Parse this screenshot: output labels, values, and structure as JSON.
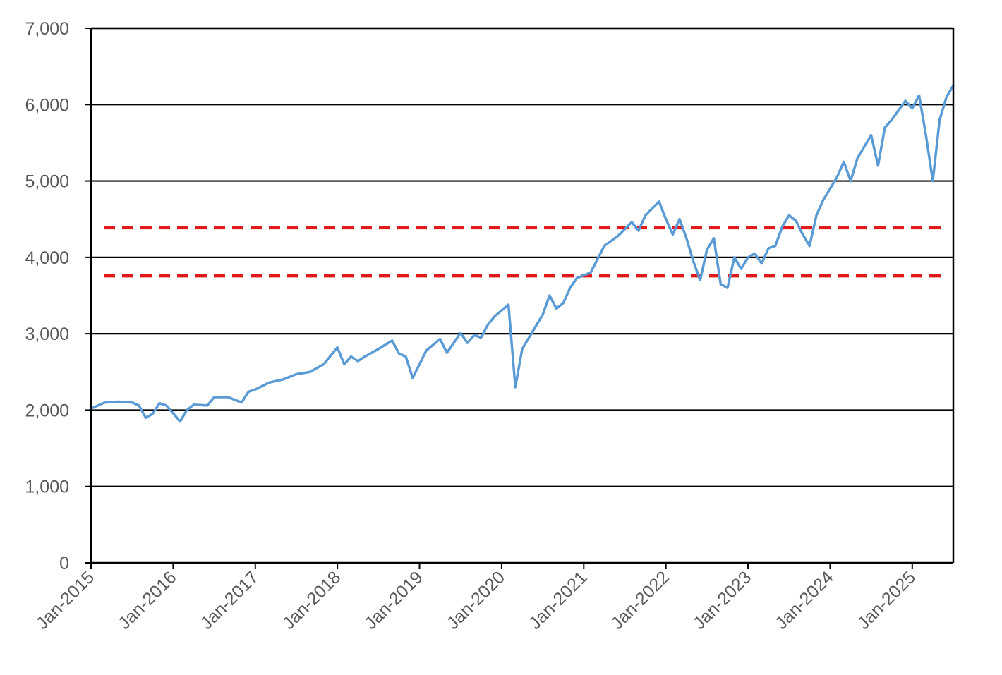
{
  "chart_data": {
    "type": "line",
    "title": "",
    "xlabel": "",
    "ylabel": "",
    "ylim": [
      0,
      7000
    ],
    "y_ticks": [
      {
        "value": 0,
        "label": "0"
      },
      {
        "value": 1000,
        "label": "1,000"
      },
      {
        "value": 2000,
        "label": "2,000"
      },
      {
        "value": 3000,
        "label": "3,000"
      },
      {
        "value": 4000,
        "label": "4,000"
      },
      {
        "value": 5000,
        "label": "5,000"
      },
      {
        "value": 6000,
        "label": "6,000"
      },
      {
        "value": 7000,
        "label": "7,000"
      }
    ],
    "xlim": [
      "2015-01",
      "2025-07"
    ],
    "x_ticks": [
      {
        "value": "2015-01",
        "label": "Jan-2015"
      },
      {
        "value": "2016-01",
        "label": "Jan-2016"
      },
      {
        "value": "2017-01",
        "label": "Jan-2017"
      },
      {
        "value": "2018-01",
        "label": "Jan-2018"
      },
      {
        "value": "2019-01",
        "label": "Jan-2019"
      },
      {
        "value": "2020-01",
        "label": "Jan-2020"
      },
      {
        "value": "2021-01",
        "label": "Jan-2021"
      },
      {
        "value": "2022-01",
        "label": "Jan-2022"
      },
      {
        "value": "2023-01",
        "label": "Jan-2023"
      },
      {
        "value": "2024-01",
        "label": "Jan-2024"
      },
      {
        "value": "2025-01",
        "label": "Jan-2025"
      }
    ],
    "grid": {
      "horizontal": true,
      "vertical": false
    },
    "legend": "none",
    "series": [
      {
        "color": "#5B9BD5",
        "points": [
          [
            "2015-01",
            2020
          ],
          [
            "2015-03",
            2100
          ],
          [
            "2015-05",
            2110
          ],
          [
            "2015-07",
            2100
          ],
          [
            "2015-08",
            2060
          ],
          [
            "2015-09",
            1900
          ],
          [
            "2015-10",
            1950
          ],
          [
            "2015-11",
            2090
          ],
          [
            "2015-12",
            2060
          ],
          [
            "2016-01",
            1960
          ],
          [
            "2016-02",
            1850
          ],
          [
            "2016-03",
            2000
          ],
          [
            "2016-04",
            2070
          ],
          [
            "2016-06",
            2060
          ],
          [
            "2016-07",
            2170
          ],
          [
            "2016-09",
            2170
          ],
          [
            "2016-11",
            2100
          ],
          [
            "2016-12",
            2240
          ],
          [
            "2017-01",
            2270
          ],
          [
            "2017-03",
            2360
          ],
          [
            "2017-05",
            2400
          ],
          [
            "2017-07",
            2470
          ],
          [
            "2017-09",
            2500
          ],
          [
            "2017-11",
            2600
          ],
          [
            "2018-01",
            2820
          ],
          [
            "2018-02",
            2600
          ],
          [
            "2018-03",
            2700
          ],
          [
            "2018-04",
            2640
          ],
          [
            "2018-05",
            2700
          ],
          [
            "2018-07",
            2800
          ],
          [
            "2018-09",
            2910
          ],
          [
            "2018-10",
            2740
          ],
          [
            "2018-11",
            2700
          ],
          [
            "2018-12",
            2420
          ],
          [
            "2019-01",
            2600
          ],
          [
            "2019-02",
            2780
          ],
          [
            "2019-04",
            2930
          ],
          [
            "2019-05",
            2750
          ],
          [
            "2019-07",
            3010
          ],
          [
            "2019-08",
            2880
          ],
          [
            "2019-09",
            2980
          ],
          [
            "2019-10",
            2950
          ],
          [
            "2019-11",
            3120
          ],
          [
            "2019-12",
            3230
          ],
          [
            "2020-02",
            3380
          ],
          [
            "2020-03",
            2300
          ],
          [
            "2020-04",
            2800
          ],
          [
            "2020-05",
            2950
          ],
          [
            "2020-06",
            3100
          ],
          [
            "2020-07",
            3250
          ],
          [
            "2020-08",
            3500
          ],
          [
            "2020-09",
            3330
          ],
          [
            "2020-10",
            3400
          ],
          [
            "2020-11",
            3600
          ],
          [
            "2020-12",
            3730
          ],
          [
            "2021-02",
            3800
          ],
          [
            "2021-04",
            4150
          ],
          [
            "2021-06",
            4280
          ],
          [
            "2021-08",
            4460
          ],
          [
            "2021-09",
            4350
          ],
          [
            "2021-10",
            4550
          ],
          [
            "2021-12",
            4730
          ],
          [
            "2022-01",
            4500
          ],
          [
            "2022-02",
            4300
          ],
          [
            "2022-03",
            4500
          ],
          [
            "2022-04",
            4250
          ],
          [
            "2022-05",
            3950
          ],
          [
            "2022-06",
            3700
          ],
          [
            "2022-07",
            4100
          ],
          [
            "2022-08",
            4250
          ],
          [
            "2022-09",
            3650
          ],
          [
            "2022-10",
            3600
          ],
          [
            "2022-11",
            4000
          ],
          [
            "2022-12",
            3850
          ],
          [
            "2023-01",
            4000
          ],
          [
            "2023-02",
            4050
          ],
          [
            "2023-03",
            3920
          ],
          [
            "2023-04",
            4120
          ],
          [
            "2023-05",
            4150
          ],
          [
            "2023-06",
            4400
          ],
          [
            "2023-07",
            4550
          ],
          [
            "2023-08",
            4480
          ],
          [
            "2023-09",
            4300
          ],
          [
            "2023-10",
            4150
          ],
          [
            "2023-11",
            4550
          ],
          [
            "2023-12",
            4750
          ],
          [
            "2024-02",
            5050
          ],
          [
            "2024-03",
            5250
          ],
          [
            "2024-04",
            5000
          ],
          [
            "2024-05",
            5300
          ],
          [
            "2024-07",
            5600
          ],
          [
            "2024-08",
            5200
          ],
          [
            "2024-09",
            5700
          ],
          [
            "2024-10",
            5800
          ],
          [
            "2024-12",
            6050
          ],
          [
            "2025-01",
            5950
          ],
          [
            "2025-02",
            6120
          ],
          [
            "2025-03",
            5600
          ],
          [
            "2025-04",
            5000
          ],
          [
            "2025-05",
            5800
          ],
          [
            "2025-06",
            6100
          ],
          [
            "2025-07",
            6250
          ]
        ]
      }
    ],
    "reference_lines": [
      {
        "y": 4390,
        "color": "#E31A1C",
        "style": "dashed"
      },
      {
        "y": 3760,
        "color": "#E31A1C",
        "style": "dashed"
      }
    ]
  }
}
